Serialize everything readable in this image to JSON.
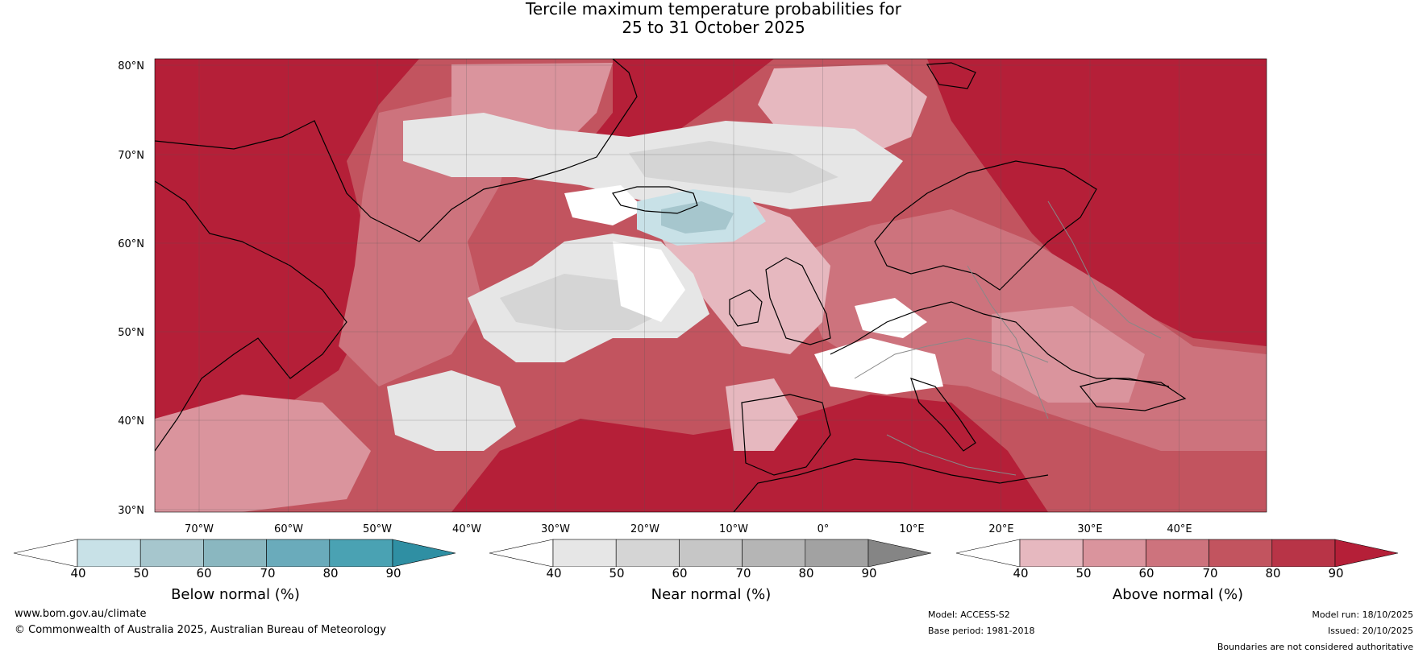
{
  "title": {
    "line1": "Tercile maximum temperature probabilities for",
    "line2": "25 to 31 October 2025"
  },
  "latitude_labels": [
    "80°N",
    "70°N",
    "60°N",
    "50°N",
    "40°N",
    "30°N"
  ],
  "longitude_labels": [
    "70°W",
    "60°W",
    "50°W",
    "40°W",
    "30°W",
    "20°W",
    "10°W",
    "0°",
    "10°E",
    "20°E",
    "30°E",
    "40°E"
  ],
  "legends": [
    {
      "title": "Below normal (%)",
      "ticks": [
        "40",
        "50",
        "60",
        "70",
        "80",
        "90"
      ],
      "colors": [
        "#ffffff",
        "#c8e1e7",
        "#a6c6cd",
        "#8ab7c0",
        "#6aabbb",
        "#4aa2b3",
        "#2f8fa3"
      ]
    },
    {
      "title": "Near normal (%)",
      "ticks": [
        "40",
        "50",
        "60",
        "70",
        "80",
        "90"
      ],
      "colors": [
        "#ffffff",
        "#e6e6e6",
        "#d5d5d5",
        "#c6c6c6",
        "#b5b5b5",
        "#a2a2a2",
        "#858585"
      ]
    },
    {
      "title": "Above normal (%)",
      "ticks": [
        "40",
        "50",
        "60",
        "70",
        "80",
        "90"
      ],
      "colors": [
        "#ffffff",
        "#e6b8bf",
        "#da949d",
        "#cd737d",
        "#c2545f",
        "#b83447",
        "#b51f38"
      ]
    }
  ],
  "map_colors": {
    "ocean_base": "#c2545f",
    "strong_warm": "#b51f38",
    "mid_warm": "#cd737d",
    "light_warm": "#da949d",
    "pale_warm": "#e6b8bf",
    "near_light": "#e6e6e6",
    "near_mid": "#d5d5d5",
    "white": "#ffffff",
    "below_light": "#c8e1e7",
    "below_mid": "#a6c6cd",
    "coast": "#000000",
    "border": "#888888",
    "grid": "#555555"
  },
  "footer": {
    "website": "www.bom.gov.au/climate",
    "copyright": "© Commonwealth of Australia 2025, Australian Bureau of Meteorology",
    "model": "Model: ACCESS-S2",
    "base_period": "Base period: 1981-2018",
    "model_run": "Model run: 18/10/2025",
    "issued": "Issued: 20/10/2025",
    "disclaimer": "Boundaries are not considered authoritative"
  }
}
